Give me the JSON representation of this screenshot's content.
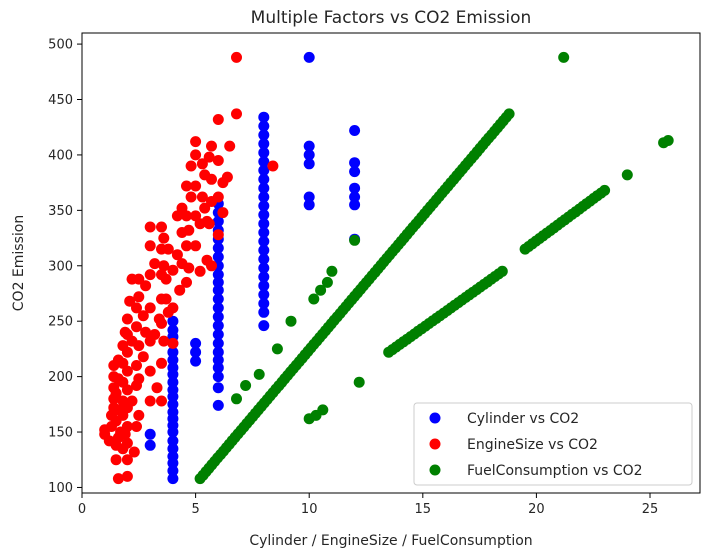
{
  "chart_data": {
    "type": "scatter",
    "title": "Multiple Factors vs CO2 Emission",
    "xlabel": "Cylinder / EngineSize / FuelConsumption",
    "ylabel": "CO2 Emission",
    "xlim": [
      0.0,
      27.2
    ],
    "ylim": [
      95,
      510
    ],
    "xticks": [
      0,
      5,
      10,
      15,
      20,
      25
    ],
    "yticks": [
      100,
      150,
      200,
      250,
      300,
      350,
      400,
      450,
      500
    ],
    "grid": false,
    "legend_position": "bottom-right",
    "series": [
      {
        "name": "Cylinder vs CO2",
        "color": "#0000ff",
        "groups": [
          {
            "x": 3,
            "y": [
              138,
              148
            ]
          },
          {
            "x": 4,
            "y": [
              108,
              115,
              122,
              128,
              135,
              142,
              150,
              156,
              162,
              168,
              175,
              182,
              188,
              195,
              202,
              208,
              215,
              222,
              230,
              236,
              242,
              250
            ]
          },
          {
            "x": 5,
            "y": [
              214,
              222,
              230
            ]
          },
          {
            "x": 6,
            "y": [
              174,
              190,
              200,
              208,
              215,
              222,
              230,
              238,
              246,
              254,
              262,
              270,
              278,
              285,
              292,
              300,
              308,
              316,
              324,
              332,
              340,
              348,
              356
            ]
          },
          {
            "x": 8,
            "y": [
              246,
              258,
              266,
              274,
              282,
              290,
              298,
              306,
              314,
              322,
              330,
              338,
              346,
              354,
              362,
              370,
              378,
              386,
              394,
              402,
              410,
              418,
              426,
              434
            ]
          },
          {
            "x": 10,
            "y": [
              355,
              362,
              392,
              400,
              408,
              488
            ]
          },
          {
            "x": 12,
            "y": [
              324,
              355,
              362,
              370,
              385,
              393,
              422
            ]
          }
        ]
      },
      {
        "name": "EngineSize vs CO2",
        "color": "#ff0000",
        "points": [
          [
            1.0,
            148
          ],
          [
            1.0,
            152
          ],
          [
            1.2,
            142
          ],
          [
            1.3,
            155
          ],
          [
            1.3,
            165
          ],
          [
            1.4,
            172
          ],
          [
            1.4,
            180
          ],
          [
            1.4,
            190
          ],
          [
            1.4,
            200
          ],
          [
            1.4,
            210
          ],
          [
            1.5,
            125
          ],
          [
            1.5,
            138
          ],
          [
            1.5,
            160
          ],
          [
            1.5,
            185
          ],
          [
            1.6,
            108
          ],
          [
            1.6,
            145
          ],
          [
            1.6,
            170
          ],
          [
            1.6,
            198
          ],
          [
            1.6,
            215
          ],
          [
            1.7,
            150
          ],
          [
            1.8,
            135
          ],
          [
            1.8,
            165
          ],
          [
            1.8,
            178
          ],
          [
            1.8,
            195
          ],
          [
            1.8,
            212
          ],
          [
            1.8,
            228
          ],
          [
            1.9,
            148
          ],
          [
            1.9,
            240
          ],
          [
            2.0,
            110
          ],
          [
            2.0,
            125
          ],
          [
            2.0,
            140
          ],
          [
            2.0,
            155
          ],
          [
            2.0,
            172
          ],
          [
            2.0,
            188
          ],
          [
            2.0,
            205
          ],
          [
            2.0,
            222
          ],
          [
            2.0,
            238
          ],
          [
            2.0,
            252
          ],
          [
            2.1,
            268
          ],
          [
            2.2,
            178
          ],
          [
            2.2,
            232
          ],
          [
            2.2,
            288
          ],
          [
            2.3,
            132
          ],
          [
            2.4,
            155
          ],
          [
            2.4,
            192
          ],
          [
            2.4,
            210
          ],
          [
            2.4,
            245
          ],
          [
            2.4,
            262
          ],
          [
            2.5,
            165
          ],
          [
            2.5,
            198
          ],
          [
            2.5,
            228
          ],
          [
            2.5,
            272
          ],
          [
            2.5,
            288
          ],
          [
            2.7,
            218
          ],
          [
            2.7,
            255
          ],
          [
            2.8,
            240
          ],
          [
            2.8,
            282
          ],
          [
            3.0,
            178
          ],
          [
            3.0,
            205
          ],
          [
            3.0,
            232
          ],
          [
            3.0,
            262
          ],
          [
            3.0,
            292
          ],
          [
            3.0,
            318
          ],
          [
            3.0,
            335
          ],
          [
            3.2,
            238
          ],
          [
            3.2,
            302
          ],
          [
            3.3,
            190
          ],
          [
            3.4,
            252
          ],
          [
            3.5,
            178
          ],
          [
            3.5,
            212
          ],
          [
            3.5,
            248
          ],
          [
            3.5,
            270
          ],
          [
            3.5,
            292
          ],
          [
            3.5,
            315
          ],
          [
            3.5,
            335
          ],
          [
            3.6,
            232
          ],
          [
            3.6,
            300
          ],
          [
            3.6,
            325
          ],
          [
            3.7,
            270
          ],
          [
            3.7,
            288
          ],
          [
            3.8,
            258
          ],
          [
            3.8,
            315
          ],
          [
            4.0,
            230
          ],
          [
            4.0,
            262
          ],
          [
            4.0,
            296
          ],
          [
            4.2,
            310
          ],
          [
            4.2,
            345
          ],
          [
            4.3,
            278
          ],
          [
            4.4,
            302
          ],
          [
            4.4,
            330
          ],
          [
            4.4,
            352
          ],
          [
            4.6,
            285
          ],
          [
            4.6,
            318
          ],
          [
            4.6,
            345
          ],
          [
            4.6,
            372
          ],
          [
            4.7,
            298
          ],
          [
            4.7,
            332
          ],
          [
            4.8,
            362
          ],
          [
            4.8,
            390
          ],
          [
            5.0,
            318
          ],
          [
            5.0,
            345
          ],
          [
            5.0,
            372
          ],
          [
            5.0,
            400
          ],
          [
            5.0,
            412
          ],
          [
            5.2,
            295
          ],
          [
            5.2,
            338
          ],
          [
            5.3,
            362
          ],
          [
            5.3,
            392
          ],
          [
            5.4,
            352
          ],
          [
            5.4,
            382
          ],
          [
            5.5,
            305
          ],
          [
            5.5,
            340
          ],
          [
            5.6,
            338
          ],
          [
            5.6,
            398
          ],
          [
            5.7,
            300
          ],
          [
            5.7,
            358
          ],
          [
            5.7,
            378
          ],
          [
            5.7,
            408
          ],
          [
            6.0,
            328
          ],
          [
            6.0,
            362
          ],
          [
            6.0,
            395
          ],
          [
            6.0,
            432
          ],
          [
            6.2,
            348
          ],
          [
            6.2,
            375
          ],
          [
            6.4,
            380
          ],
          [
            6.5,
            408
          ],
          [
            6.8,
            437
          ],
          [
            6.8,
            488
          ],
          [
            8.4,
            390
          ]
        ]
      },
      {
        "name": "FuelConsumption vs CO2",
        "color": "#008000",
        "segments": [
          {
            "x": [
              5.2,
              18.8
            ],
            "y": [
              108,
              437
            ]
          },
          {
            "x": [
              13.5,
              18.5
            ],
            "y": [
              222,
              295
            ]
          },
          {
            "x": [
              19.5,
              23.0
            ],
            "y": [
              315,
              368
            ]
          }
        ],
        "points": [
          [
            6.8,
            180
          ],
          [
            7.2,
            192
          ],
          [
            7.8,
            202
          ],
          [
            8.6,
            225
          ],
          [
            9.2,
            250
          ],
          [
            10.0,
            162
          ],
          [
            10.3,
            165
          ],
          [
            10.6,
            170
          ],
          [
            10.2,
            270
          ],
          [
            10.5,
            278
          ],
          [
            10.8,
            285
          ],
          [
            11.0,
            295
          ],
          [
            12.0,
            323
          ],
          [
            12.2,
            195
          ],
          [
            21.2,
            488
          ],
          [
            24.0,
            382
          ],
          [
            25.6,
            411
          ],
          [
            25.8,
            413
          ]
        ]
      }
    ]
  }
}
